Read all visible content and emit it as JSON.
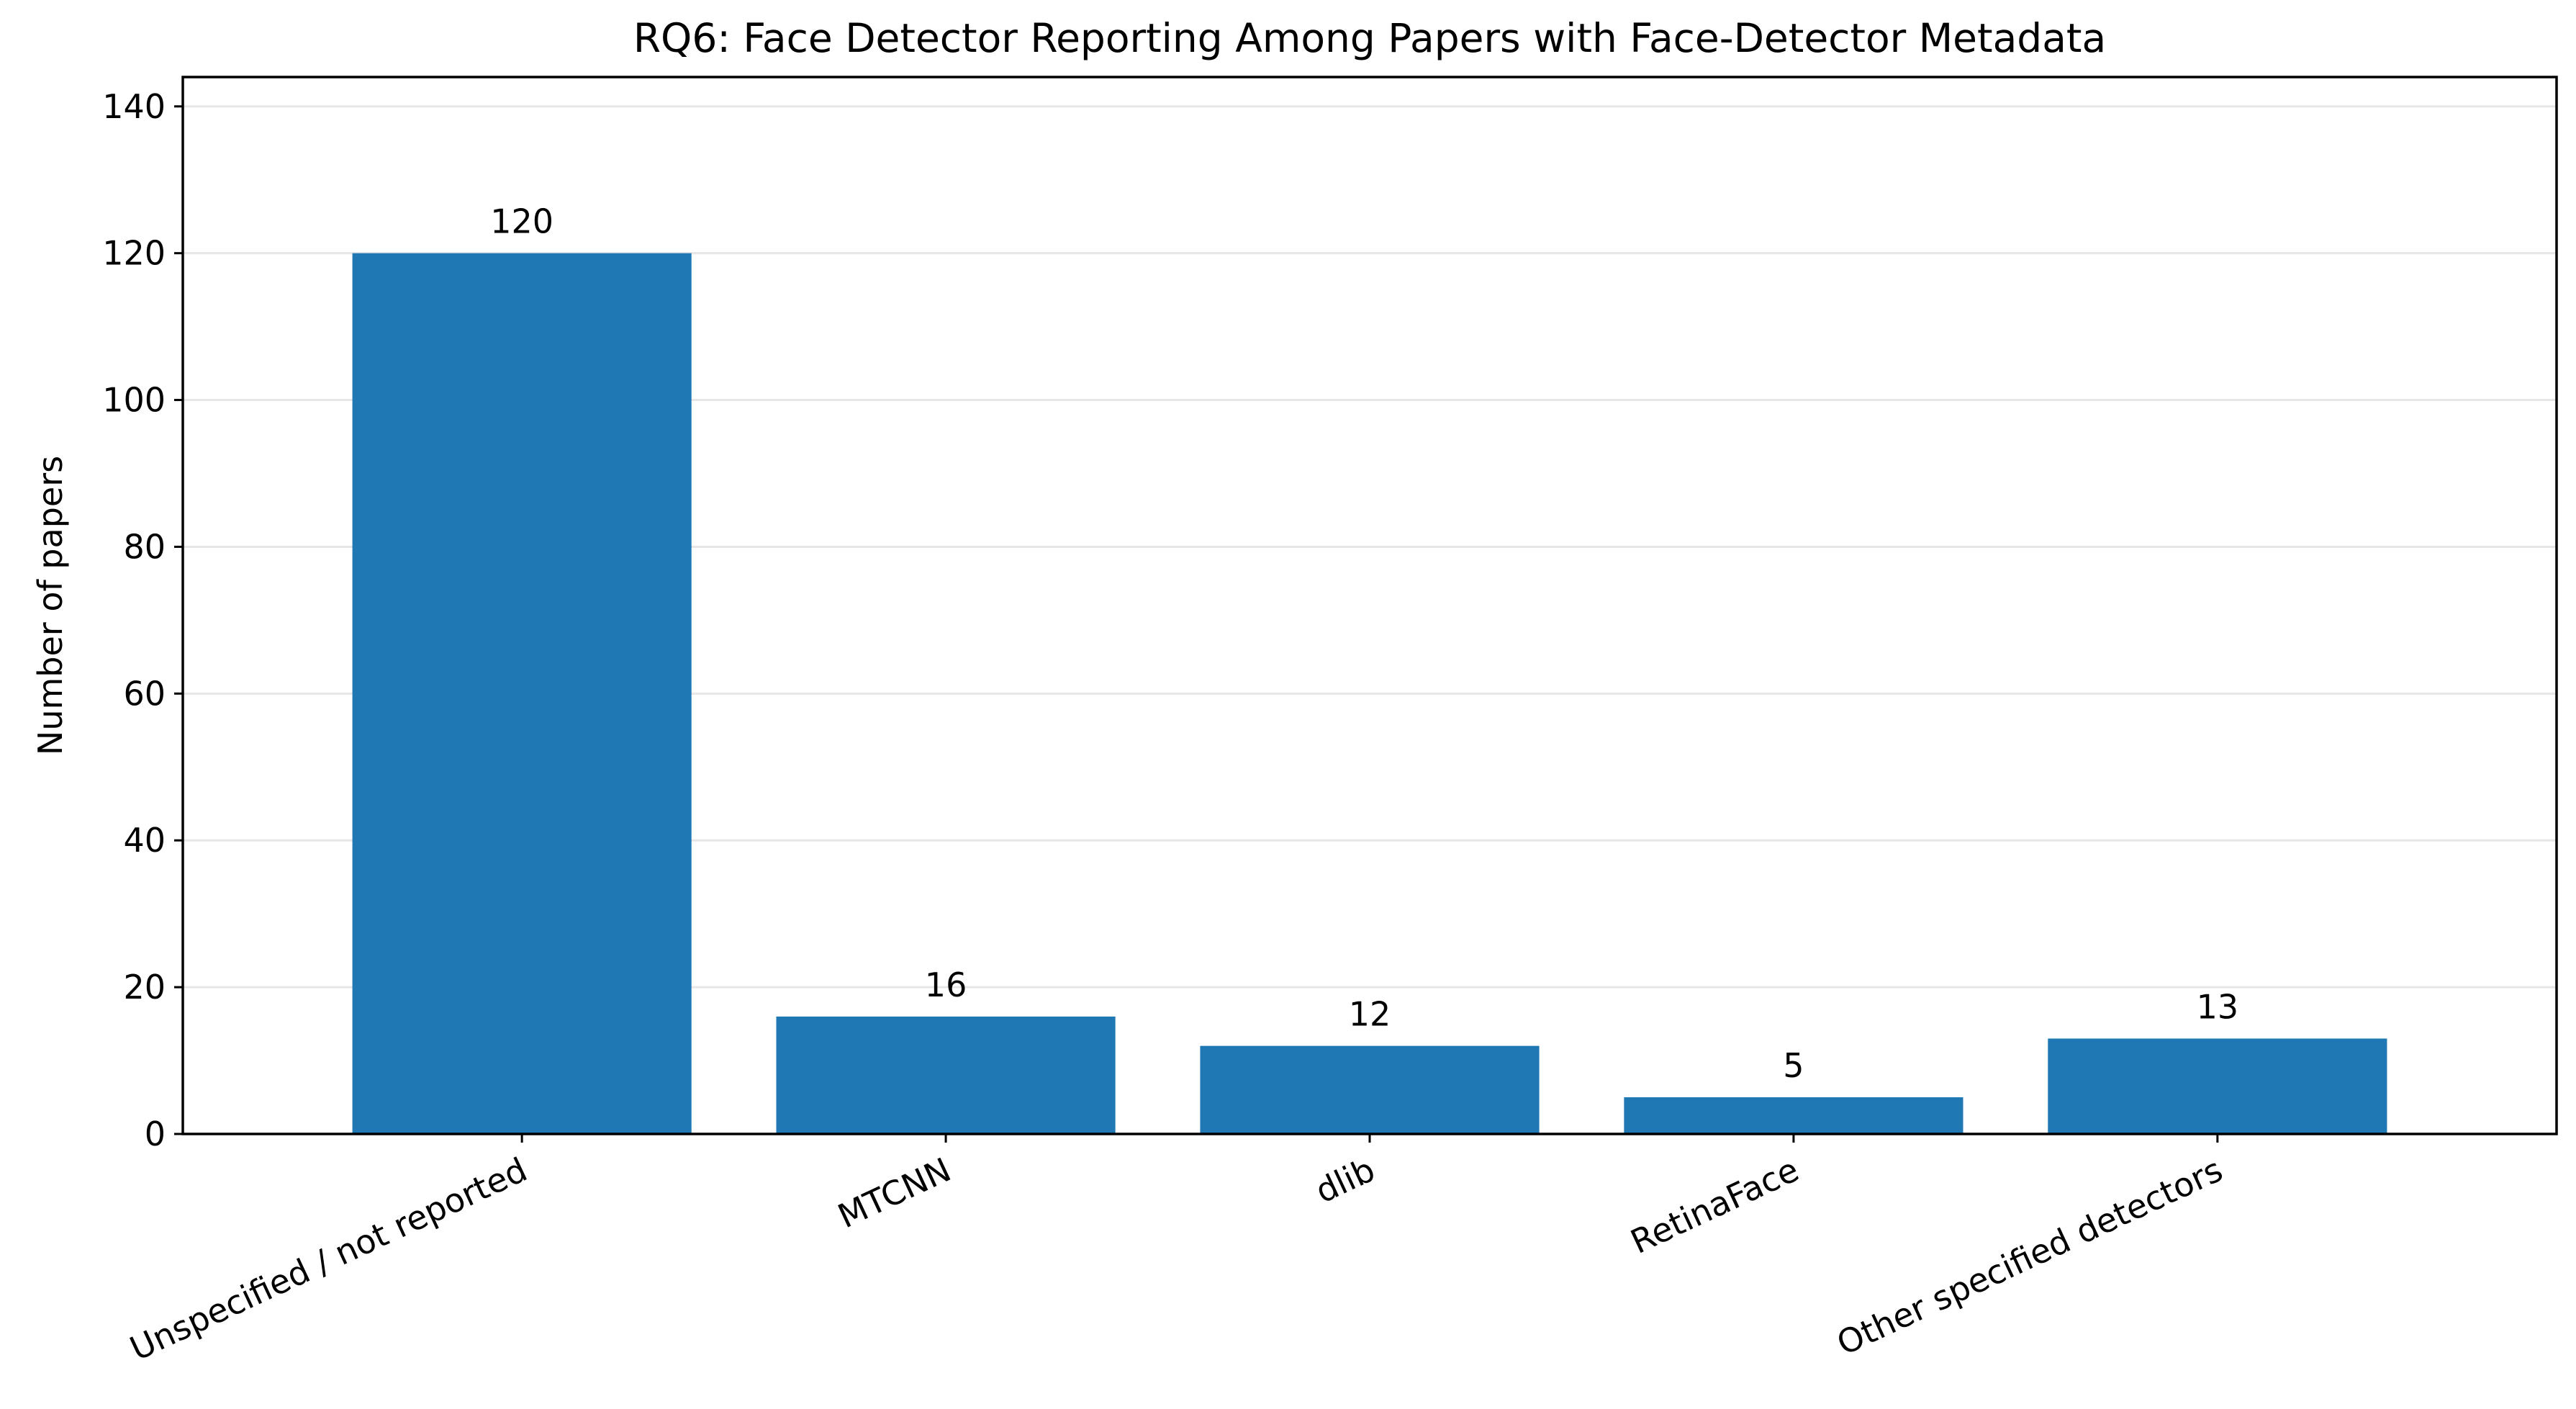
{
  "chart_data": {
    "type": "bar",
    "title": "RQ6: Face Detector Reporting Among Papers with Face-Detector Metadata",
    "xlabel": "",
    "ylabel": "Number of papers",
    "categories": [
      "Unspecified / not reported",
      "MTCNN",
      "dlib",
      "RetinaFace",
      "Other specified detectors"
    ],
    "values": [
      120,
      16,
      12,
      5,
      13
    ],
    "ylim": [
      0,
      144
    ],
    "yticks": [
      0,
      20,
      40,
      60,
      80,
      100,
      120,
      140
    ],
    "grid": "horizontal",
    "bar_color": "#1f77b4",
    "grid_color": "#e6e6e6",
    "axis_color": "#000000",
    "show_value_labels": true
  }
}
